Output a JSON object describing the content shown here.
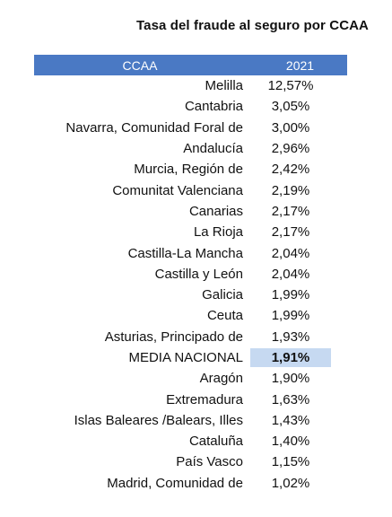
{
  "title": "Tasa del fraude al seguro por CCAA",
  "header": {
    "col_region": "CCAA",
    "col_year": "2021"
  },
  "colors": {
    "header_bg": "#4a79c4",
    "header_text": "#ffffff",
    "highlight_bg": "#c6d9f1"
  },
  "rows": [
    {
      "region": "Melilla",
      "value": "12,57%"
    },
    {
      "region": "Cantabria",
      "value": "3,05%"
    },
    {
      "region": "Navarra, Comunidad Foral de",
      "value": "3,00%"
    },
    {
      "region": "Andalucía",
      "value": "2,96%"
    },
    {
      "region": "Murcia, Región de",
      "value": "2,42%"
    },
    {
      "region": "Comunitat Valenciana",
      "value": "2,19%"
    },
    {
      "region": "Canarias",
      "value": "2,17%"
    },
    {
      "region": "La Rioja",
      "value": "2,17%"
    },
    {
      "region": "Castilla-La Mancha",
      "value": "2,04%"
    },
    {
      "region": "Castilla y León",
      "value": "2,04%"
    },
    {
      "region": "Galicia",
      "value": "1,99%"
    },
    {
      "region": "Ceuta",
      "value": "1,99%"
    },
    {
      "region": "Asturias, Principado de",
      "value": "1,93%"
    },
    {
      "region": "MEDIA NACIONAL",
      "value": "1,91%",
      "highlight": true
    },
    {
      "region": "Aragón",
      "value": "1,90%"
    },
    {
      "region": "Extremadura",
      "value": "1,63%"
    },
    {
      "region": "Islas Baleares /Balears, Illes",
      "value": "1,43%"
    },
    {
      "region": "Cataluña",
      "value": "1,40%"
    },
    {
      "region": "País Vasco",
      "value": "1,15%"
    },
    {
      "region": "Madrid, Comunidad de",
      "value": "1,02%"
    }
  ]
}
